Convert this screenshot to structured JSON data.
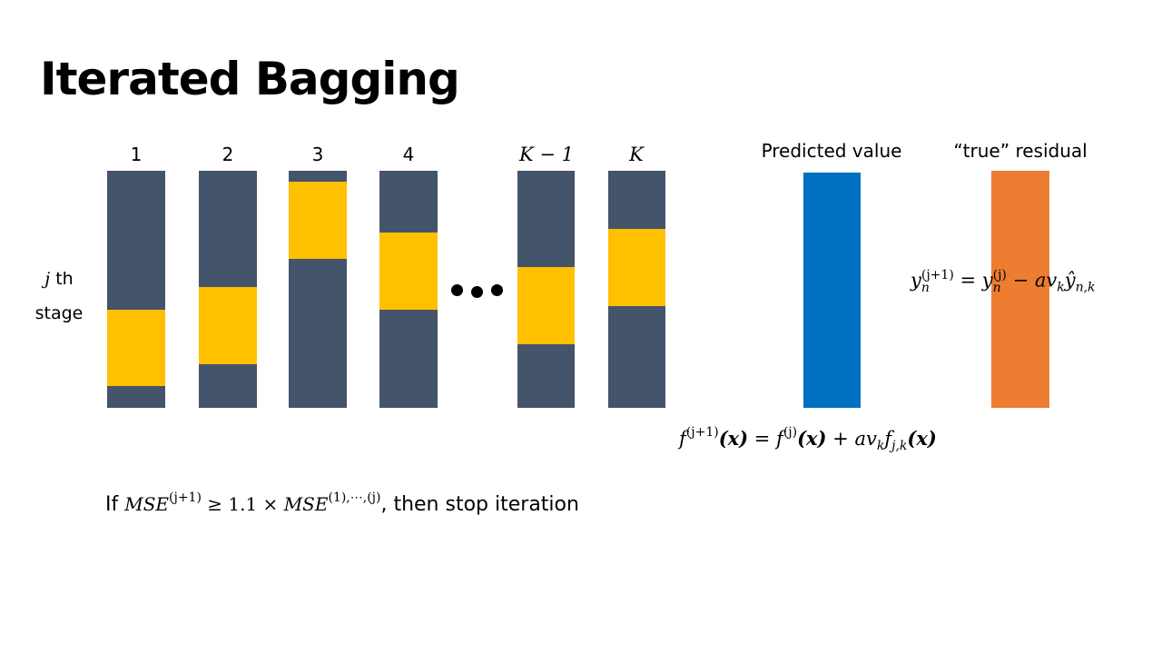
{
  "title": "Iterated Bagging",
  "columns": [
    {
      "label": "1",
      "math": false,
      "highlight": [
        0.585,
        0.325
      ]
    },
    {
      "label": "2",
      "math": false,
      "highlight": [
        0.49,
        0.325
      ]
    },
    {
      "label": "3",
      "math": false,
      "highlight": [
        0.045,
        0.325
      ]
    },
    {
      "label": "4",
      "math": false,
      "highlight": [
        0.26,
        0.325
      ]
    },
    {
      "label": "K − 1",
      "math": true,
      "highlight": [
        0.405,
        0.325
      ]
    },
    {
      "label": "K",
      "math": true,
      "highlight": [
        0.245,
        0.325
      ]
    }
  ],
  "stage_label": {
    "var": "j",
    "suffix": " th",
    "line2": "stage"
  },
  "predicted_label": "Predicted value",
  "residual_label": "“true” residual",
  "residual_formula": {
    "lhs": "y",
    "lhs_sub": "n",
    "lhs_sup": "(j+1)",
    "eq": " = ",
    "rhs1": "y",
    "rhs1_sub": "n",
    "rhs1_sup": "(j)",
    "minus": " − ",
    "rhs2": "av",
    "rhs2_sub": "k",
    "rhs3": "ŷ",
    "rhs3_sub": "n,k"
  },
  "update_formula": {
    "f1": "f",
    "f1_sup": "(j+1)",
    "x1": "(x)",
    "eq": " = ",
    "f2": "f",
    "f2_sup": "(j)",
    "x2": "(x)",
    "plus": " + ",
    "av": "av",
    "av_sub": "k",
    "f3": "f",
    "f3_sub": "j,k",
    "x3": "(x)"
  },
  "stop_rule": {
    "prefix": "If ",
    "mse1": "MSE",
    "mse1_sup": "(j+1)",
    "cmp": " ≥ 1.1 × ",
    "mse2": "MSE",
    "mse2_sup": "(1),⋯,(j)",
    "suffix": ", then stop iteration"
  },
  "colors": {
    "bar": "#44546a",
    "highlight": "#ffc000",
    "predicted": "#0070c0",
    "residual": "#ed7d31"
  }
}
